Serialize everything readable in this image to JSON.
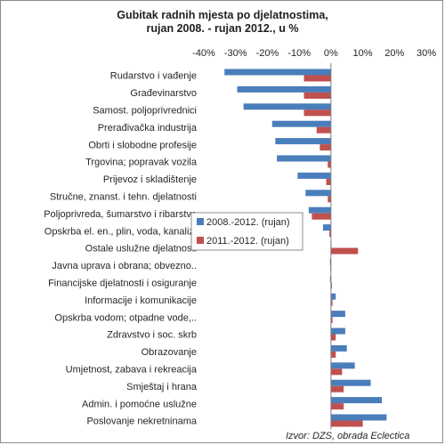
{
  "chart_data": {
    "type": "bar",
    "orientation": "horizontal",
    "title": [
      "Gubitak radnih mjesta po djelatnostima,",
      "rujan 2008. - rujan 2012., u %"
    ],
    "xlim": [
      -40,
      30
    ],
    "x_ticks": [
      "-40%",
      "-30%",
      "-20%",
      "-10%",
      "0%",
      "10%",
      "20%",
      "30%"
    ],
    "x_tick_values": [
      -40,
      -30,
      -20,
      -10,
      0,
      10,
      20,
      30
    ],
    "grid": false,
    "legend_position": "center-left",
    "categories": [
      "Rudarstvo i vađenje",
      "Građevinarstvo",
      "Samost. poljoprivrednici",
      "Prerađivačka industrija",
      "Obrti i slobodne profesije",
      "Trgovina; popravak vozila",
      "Prijevoz i skladištenje",
      "Stručne, znanst. i tehn. djelatnosti",
      "Poljoprivreda, šumarstvo i ribarstvo",
      "Opskrba el. en., plin, voda, kanaliz.",
      "Ostale uslužne  djelatnosti",
      "Javna uprava  i obrana; obvezno..",
      "Financijske djelatnosti i osiguranje",
      "Informacije i komunikacije",
      "Opskrba vodom; otpadne vode,..",
      "Zdravstvo i soc. skrb",
      "Obrazovanje",
      "Umjetnost, zabava i rekreacija",
      "Smještaj i hrana",
      "Admin. i pomoćne uslužne",
      "Poslovanje nekretninama"
    ],
    "series": [
      {
        "name": "2008.-2012.  (rujan)",
        "color": "#4a7ebb",
        "values": [
          -33.5,
          -29.5,
          -27.5,
          -18.5,
          -17.5,
          -17,
          -10.5,
          -8,
          -7,
          -2.5,
          0,
          -0.3,
          -0.3,
          1.5,
          4.5,
          4.5,
          5,
          7.5,
          12.5,
          16,
          17.5
        ]
      },
      {
        "name": "2011.-2012.  (rujan)",
        "color": "#c0504d",
        "values": [
          -8.5,
          -8.5,
          -8.5,
          -4.5,
          -3.5,
          -1,
          -1.5,
          -1,
          -6,
          -0.5,
          8.5,
          -0.2,
          0.3,
          0.5,
          0.5,
          1.5,
          1.5,
          3.5,
          4,
          4,
          10
        ]
      }
    ]
  },
  "source": "Izvor: DZS, obrada  Eclectica"
}
